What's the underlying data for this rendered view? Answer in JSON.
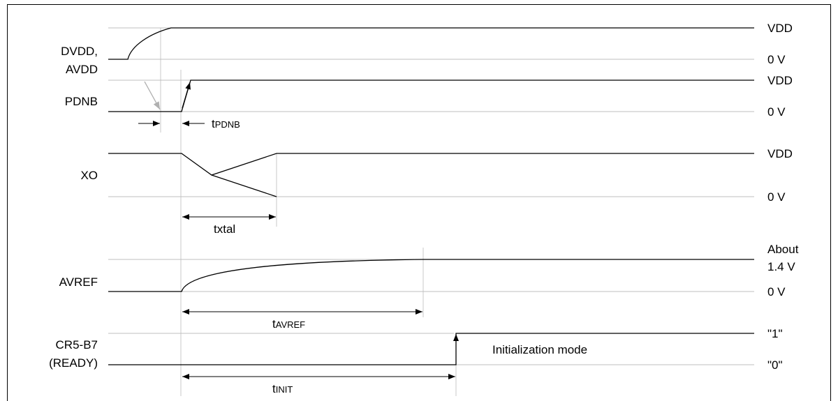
{
  "signals": {
    "dvdd_line1": "DVDD,",
    "dvdd_line2": "AVDD",
    "pdnb": "PDNB",
    "xo": "XO",
    "avref": "AVREF",
    "cr5_line1": "CR5-B7",
    "cr5_line2": "(READY)"
  },
  "levels": {
    "vdd": "VDD",
    "zero_v": "0 V",
    "about": "About",
    "avref_level": "1.4 V",
    "one": "\"1\"",
    "zero": "\"0\""
  },
  "timings": {
    "tpdnb_main": "t",
    "tpdnb_sub": "PDNB",
    "txtal": "txtal",
    "tavref_main": "t",
    "tavref_sub": "AVREF",
    "tinit_main": "t",
    "tinit_sub": "INIT"
  },
  "annotations": {
    "init_mode": "Initialization mode"
  },
  "colors": {
    "waveform": "#000000",
    "reference_line": "#bfbfbf",
    "guide_line": "#c8c8c8",
    "frame": "#000000"
  }
}
